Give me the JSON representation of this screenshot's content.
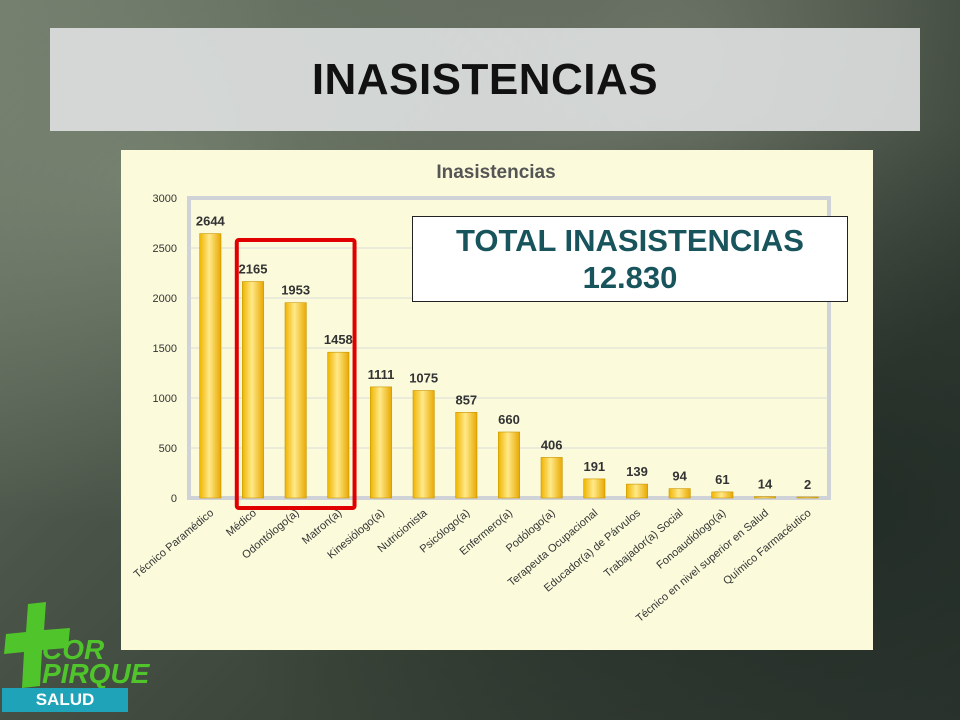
{
  "slide": {
    "title": "INASISTENCIAS"
  },
  "total": {
    "line1": "TOTAL INASISTENCIAS",
    "line2": "12.830"
  },
  "logo": {
    "line1": "COR",
    "line2": "PIRQUE",
    "badge": "SALUD"
  },
  "colors": {
    "bar": "#f3b800",
    "bar_highlight": "#ffe98a",
    "highlight_box": "#e00000",
    "total_text": "#17545c",
    "panel": "#fbfbdc",
    "logo_green": "#4fc52b",
    "logo_blue": "#1fa3b8"
  },
  "chart_data": {
    "type": "bar",
    "title": "Inasistencias",
    "categories": [
      "Técnico Paramédico",
      "Médico",
      "Odontólogo(a)",
      "Matron(a)",
      "Kinesiólogo(a)",
      "Nutricionista",
      "Psicólogo(a)",
      "Enfermero(a)",
      "Podólogo(a)",
      "Terapeuta Ocupacional",
      "Educador(a) de Párvulos",
      "Trabajador(a) Social",
      "Fonoaudiólogo(a)",
      "Técnico en nivel superior en Salud",
      "Químico Farmacéutico"
    ],
    "values": [
      2644,
      2165,
      1953,
      1458,
      1111,
      1075,
      857,
      660,
      406,
      191,
      139,
      94,
      61,
      14,
      2
    ],
    "data_labels": [
      "2644",
      "2165",
      "1953",
      "1458",
      "1111",
      "1075",
      "857",
      "660",
      "406",
      "191",
      "139",
      "94",
      "61",
      "14",
      "2"
    ],
    "ylim": [
      0,
      3000
    ],
    "yticks": [
      0,
      500,
      1000,
      1500,
      2000,
      2500,
      3000
    ],
    "ytick_labels": [
      "0",
      "500",
      "1000",
      "1500",
      "2000",
      "2500",
      "3000"
    ],
    "xlabel": "",
    "ylabel": "",
    "grid": true,
    "legend": "none",
    "highlighted_categories": [
      "Médico",
      "Odontólogo(a)",
      "Matron(a)"
    ]
  }
}
